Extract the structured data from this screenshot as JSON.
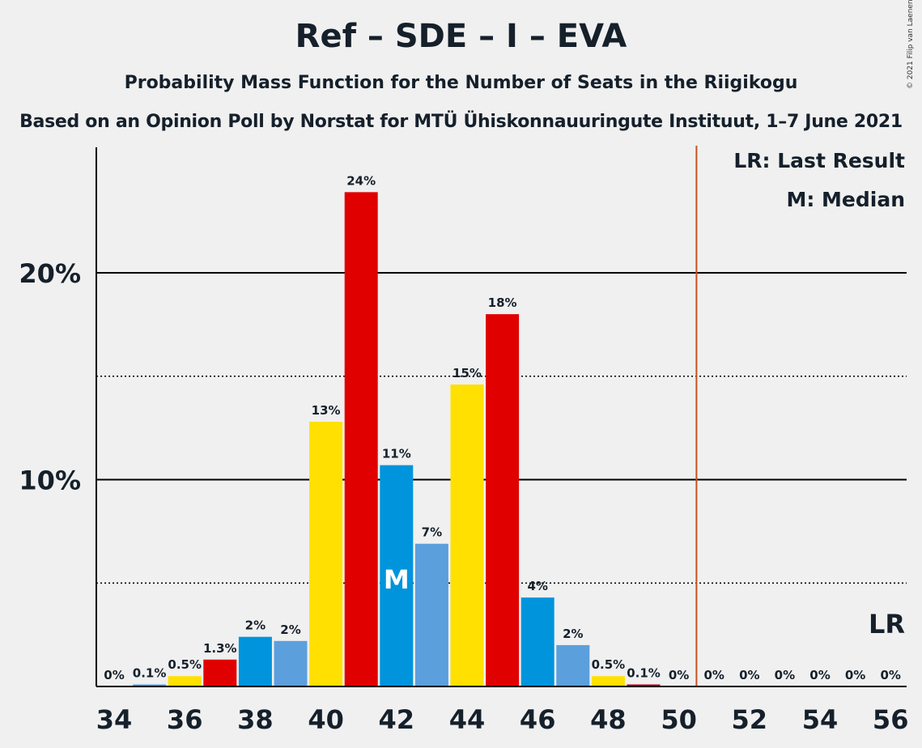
{
  "header": {
    "title": "Ref – SDE – I – EVA",
    "subtitle": "Probability Mass Function for the Number of Seats in the Riigikogu",
    "subtitle2": "Based on an Opinion Poll by Norstat for MTÜ Ühiskonnauuringute Instituut, 1–7 June 2021"
  },
  "copyright": "© 2021 Filip van Laenen",
  "legend": {
    "last_result": "LR: Last Result",
    "median": "M: Median"
  },
  "chart_data": {
    "type": "bar",
    "title": "Ref – SDE – I – EVA",
    "x": [
      34,
      35,
      36,
      37,
      38,
      39,
      40,
      41,
      42,
      43,
      44,
      45,
      46,
      47,
      48,
      49,
      50,
      51,
      52,
      53,
      54,
      55,
      56
    ],
    "values": [
      0,
      0.1,
      0.5,
      1.3,
      2.4,
      2.2,
      12.8,
      23.9,
      10.7,
      6.9,
      14.6,
      18,
      4.3,
      2,
      0.5,
      0.1,
      0,
      0,
      0,
      0,
      0,
      0,
      0
    ],
    "labels": [
      "0%",
      "0.1%",
      "0.5%",
      "1.3%",
      "2%",
      "2%",
      "13%",
      "24%",
      "11%",
      "7%",
      "15%",
      "18%",
      "4%",
      "2%",
      "0.5%",
      "0.1%",
      "0%",
      "0%",
      "0%",
      "0%",
      "0%",
      "0%",
      "0%"
    ],
    "colors": [
      "#1a8cdb",
      "#5ba0e0",
      "#ffe000",
      "#e00000",
      "#0094dd",
      "#5b9fdd",
      "#ffe000",
      "#e00000",
      "#0094dd",
      "#5b9fdd",
      "#ffe000",
      "#e00000",
      "#0094dd",
      "#5b9fdd",
      "#ffe000",
      "#b0102a",
      "#0094dd",
      "#5b9fdd",
      "#ffe000",
      "#e00000",
      "#0094dd",
      "#5b9fdd",
      "#ffe000"
    ],
    "xticks": [
      "34",
      "36",
      "38",
      "40",
      "42",
      "44",
      "46",
      "48",
      "50",
      "52",
      "54",
      "56"
    ],
    "yticks": [
      "10%",
      "20%"
    ],
    "ylim": [
      0,
      26
    ],
    "median": 42,
    "median_label": "M",
    "last_result_line": 50.5,
    "last_result_label": "LR",
    "majority_line_color": "#c8501e",
    "grid": "solid at 10% and 20%, dotted at 5% and 15%"
  }
}
